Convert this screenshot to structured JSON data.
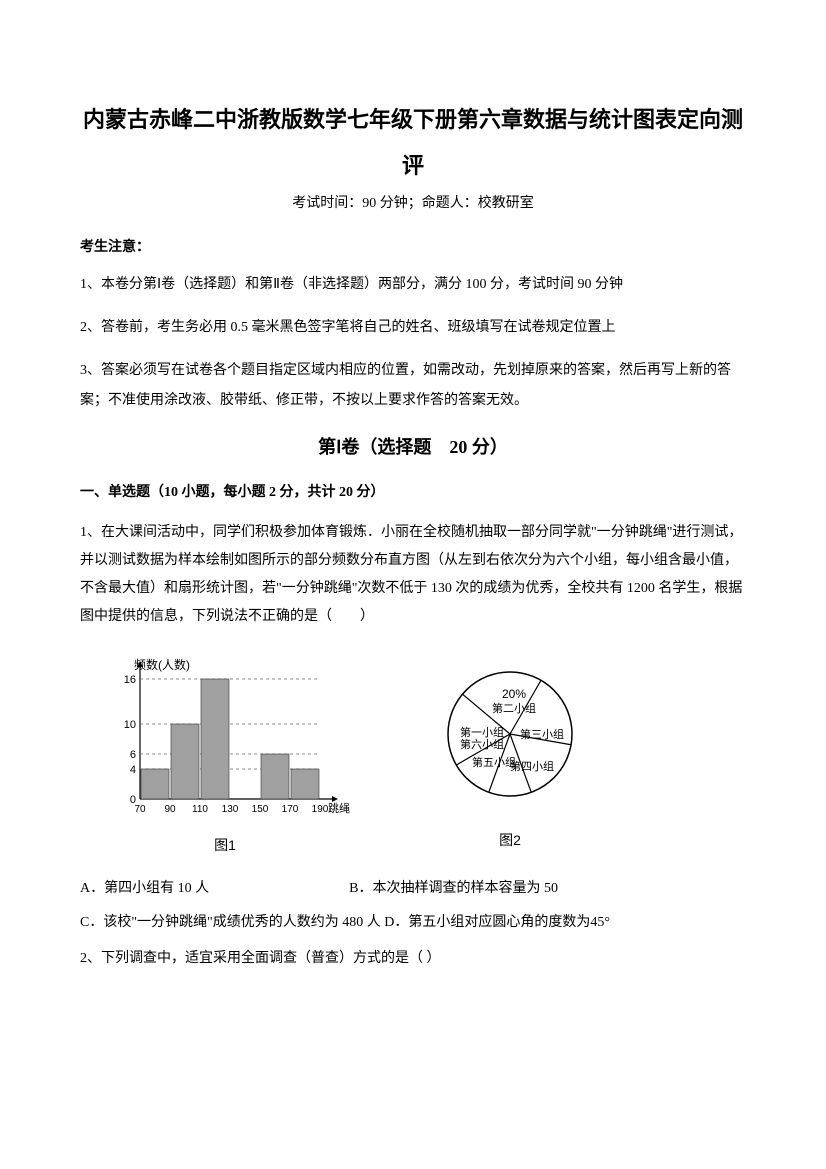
{
  "title": "内蒙古赤峰二中浙教版数学七年级下册第六章数据与统计图表定向测",
  "title2": "评",
  "exam_info": "考试时间：90 分钟；命题人：校教研室",
  "notice_label": "考生注意：",
  "instructions": [
    "1、本卷分第Ⅰ卷（选择题）和第Ⅱ卷（非选择题）两部分，满分 100 分，考试时间 90 分钟",
    "2、答卷前，考生务必用 0.5 毫米黑色签字笔将自己的姓名、班级填写在试卷规定位置上",
    "3、答案必须写在试卷各个题目指定区域内相应的位置，如需改动，先划掉原来的答案，然后再写上新的答案；不准使用涂改液、胶带纸、修正带，不按以上要求作答的答案无效。"
  ],
  "section1_header": "第Ⅰ卷（选择题　20 分）",
  "qgroup_header": "一、单选题（10 小题，每小题 2 分，共计 20 分）",
  "q1_text": "1、在大课间活动中，同学们积极参加体育锻炼．小丽在全校随机抽取一部分同学就\"一分钟跳绳\"进行测试，并以测试数据为样本绘制如图所示的部分频数分布直方图（从左到右依次分为六个小组，每小组含最小值，不含最大值）和扇形统计图，若\"一分钟跳绳\"次数不低于 130 次的成绩为优秀，全校共有 1200 名学生，根据图中提供的信息，下列说法不正确的是（　　）",
  "histogram": {
    "ylabel": "频数(人数)",
    "xlabel": "跳绳(次数)",
    "caption": "图1",
    "xticks": [
      "70",
      "90",
      "110",
      "130",
      "150",
      "170",
      "190"
    ],
    "yticks": [
      0,
      4,
      6,
      10,
      16
    ],
    "bars": [
      4,
      10,
      16,
      0,
      6,
      4
    ],
    "bar_color": "#a0a0a0",
    "axis_color": "#000000",
    "gridline_color": "#666666",
    "background": "#ffffff"
  },
  "pie": {
    "caption": "图2",
    "center_percent": "20%",
    "labels": [
      "第一小组",
      "第二小组",
      "第三小组",
      "第四小组",
      "第五小组",
      "第六小组"
    ],
    "stroke": "#000000",
    "fill": "#ffffff"
  },
  "q1_options": {
    "A": "A．第四小组有 10 人",
    "B": "B．本次抽样调查的样本容量为 50",
    "C": "C．该校\"一分钟跳绳\"成绩优秀的人数约为 480 人 D．第五小组对应圆心角的度数为45°"
  },
  "q2_text": "2、下列调查中，适宜采用全面调查（普查）方式的是（ ）"
}
